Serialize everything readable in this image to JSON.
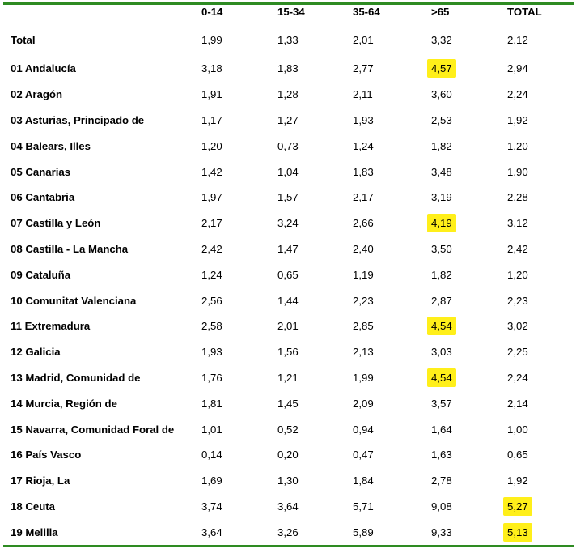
{
  "columns": [
    "",
    "0-14",
    "15-34",
    "35-64",
    ">65",
    "TOTAL"
  ],
  "rows": [
    {
      "region": "Total",
      "values": [
        "1,99",
        "1,33",
        "2,01",
        "3,32",
        "2,12"
      ],
      "highlight": [
        false,
        false,
        false,
        false,
        false
      ]
    },
    {
      "region": "01 Andalucía",
      "values": [
        "3,18",
        "1,83",
        "2,77",
        "4,57",
        "2,94"
      ],
      "highlight": [
        false,
        false,
        false,
        true,
        false
      ]
    },
    {
      "region": "02 Aragón",
      "values": [
        "1,91",
        "1,28",
        "2,11",
        "3,60",
        "2,24"
      ],
      "highlight": [
        false,
        false,
        false,
        false,
        false
      ]
    },
    {
      "region": "03 Asturias, Principado de",
      "values": [
        "1,17",
        "1,27",
        "1,93",
        "2,53",
        "1,92"
      ],
      "highlight": [
        false,
        false,
        false,
        false,
        false
      ]
    },
    {
      "region": "04 Balears, Illes",
      "values": [
        "1,20",
        "0,73",
        "1,24",
        "1,82",
        "1,20"
      ],
      "highlight": [
        false,
        false,
        false,
        false,
        false
      ]
    },
    {
      "region": "05 Canarias",
      "values": [
        "1,42",
        "1,04",
        "1,83",
        "3,48",
        "1,90"
      ],
      "highlight": [
        false,
        false,
        false,
        false,
        false
      ]
    },
    {
      "region": "06 Cantabria",
      "values": [
        "1,97",
        "1,57",
        "2,17",
        "3,19",
        "2,28"
      ],
      "highlight": [
        false,
        false,
        false,
        false,
        false
      ]
    },
    {
      "region": "07 Castilla y León",
      "values": [
        "2,17",
        "3,24",
        "2,66",
        "4,19",
        "3,12"
      ],
      "highlight": [
        false,
        false,
        false,
        true,
        false
      ]
    },
    {
      "region": "08 Castilla - La Mancha",
      "values": [
        "2,42",
        "1,47",
        "2,40",
        "3,50",
        "2,42"
      ],
      "highlight": [
        false,
        false,
        false,
        false,
        false
      ]
    },
    {
      "region": "09 Cataluña",
      "values": [
        "1,24",
        "0,65",
        "1,19",
        "1,82",
        "1,20"
      ],
      "highlight": [
        false,
        false,
        false,
        false,
        false
      ]
    },
    {
      "region": "10 Comunitat Valenciana",
      "values": [
        "2,56",
        "1,44",
        "2,23",
        "2,87",
        "2,23"
      ],
      "highlight": [
        false,
        false,
        false,
        false,
        false
      ]
    },
    {
      "region": "11 Extremadura",
      "values": [
        "2,58",
        "2,01",
        "2,85",
        "4,54",
        "3,02"
      ],
      "highlight": [
        false,
        false,
        false,
        true,
        false
      ]
    },
    {
      "region": "12 Galicia",
      "values": [
        "1,93",
        "1,56",
        "2,13",
        "3,03",
        "2,25"
      ],
      "highlight": [
        false,
        false,
        false,
        false,
        false
      ]
    },
    {
      "region": "13 Madrid, Comunidad de",
      "values": [
        "1,76",
        "1,21",
        "1,99",
        "4,54",
        "2,24"
      ],
      "highlight": [
        false,
        false,
        false,
        true,
        false
      ]
    },
    {
      "region": "14 Murcia, Región de",
      "values": [
        "1,81",
        "1,45",
        "2,09",
        "3,57",
        "2,14"
      ],
      "highlight": [
        false,
        false,
        false,
        false,
        false
      ]
    },
    {
      "region": "15 Navarra, Comunidad Foral de",
      "values": [
        "1,01",
        "0,52",
        "0,94",
        "1,64",
        "1,00"
      ],
      "highlight": [
        false,
        false,
        false,
        false,
        false
      ]
    },
    {
      "region": "16 País Vasco",
      "values": [
        "0,14",
        "0,20",
        "0,47",
        "1,63",
        "0,65"
      ],
      "highlight": [
        false,
        false,
        false,
        false,
        false
      ]
    },
    {
      "region": "17 Rioja, La",
      "values": [
        "1,69",
        "1,30",
        "1,84",
        "2,78",
        "1,92"
      ],
      "highlight": [
        false,
        false,
        false,
        false,
        false
      ]
    },
    {
      "region": "18 Ceuta",
      "values": [
        "3,74",
        "3,64",
        "5,71",
        "9,08",
        "5,27"
      ],
      "highlight": [
        false,
        false,
        false,
        false,
        true
      ]
    },
    {
      "region": "19 Melilla",
      "values": [
        "3,64",
        "3,26",
        "5,89",
        "9,33",
        "5,13"
      ],
      "highlight": [
        false,
        false,
        false,
        false,
        true
      ]
    }
  ],
  "colors": {
    "rule": "#2e8b22",
    "highlight": "#ffef1a",
    "text": "#000000",
    "background": "#ffffff"
  }
}
